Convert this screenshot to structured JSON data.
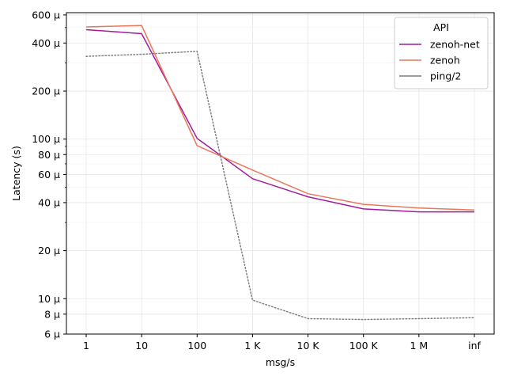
{
  "chart_data": {
    "type": "line",
    "xlabel": "msg/s",
    "ylabel": "Latency (s)",
    "y_scale": "log",
    "ylim": [
      6e-06,
      0.00062
    ],
    "grid": true,
    "legend_title": "API",
    "legend_position": "top-right",
    "categories": [
      "1",
      "10",
      "100",
      "1 K",
      "10 K",
      "100 K",
      "1 M",
      "inf"
    ],
    "y_ticks": [
      {
        "value": 6e-06,
        "label": "6 µ"
      },
      {
        "value": 8e-06,
        "label": "8 µ"
      },
      {
        "value": 1e-05,
        "label": "10 µ"
      },
      {
        "value": 2e-05,
        "label": "20 µ"
      },
      {
        "value": 4e-05,
        "label": "40 µ"
      },
      {
        "value": 6e-05,
        "label": "60 µ"
      },
      {
        "value": 8e-05,
        "label": "80 µ"
      },
      {
        "value": 0.0001,
        "label": "100 µ"
      },
      {
        "value": 0.0002,
        "label": "200 µ"
      },
      {
        "value": 0.0004,
        "label": "400 µ"
      },
      {
        "value": 0.0006,
        "label": "600 µ"
      }
    ],
    "y_minor_ticks": [
      3e-05,
      5e-05,
      7e-05,
      9e-05,
      0.0003,
      0.0005
    ],
    "series": [
      {
        "name": "zenoh-net",
        "color": "#a21b9c",
        "style": "solid",
        "values": [
          0.000485,
          0.000458,
          0.000101,
          5.65e-05,
          4.35e-05,
          3.65e-05,
          3.5e-05,
          3.5e-05
        ]
      },
      {
        "name": "zenoh",
        "color": "#e9785a",
        "style": "solid",
        "values": [
          0.000505,
          0.000515,
          9.1e-05,
          6.4e-05,
          4.55e-05,
          3.9e-05,
          3.7e-05,
          3.6e-05
        ]
      },
      {
        "name": "ping/2",
        "color": "#7f7f7f",
        "style": "dotted",
        "values": [
          0.00033,
          0.00034,
          0.000355,
          9.8e-06,
          7.5e-06,
          7.4e-06,
          7.5e-06,
          7.6e-06
        ]
      }
    ]
  }
}
